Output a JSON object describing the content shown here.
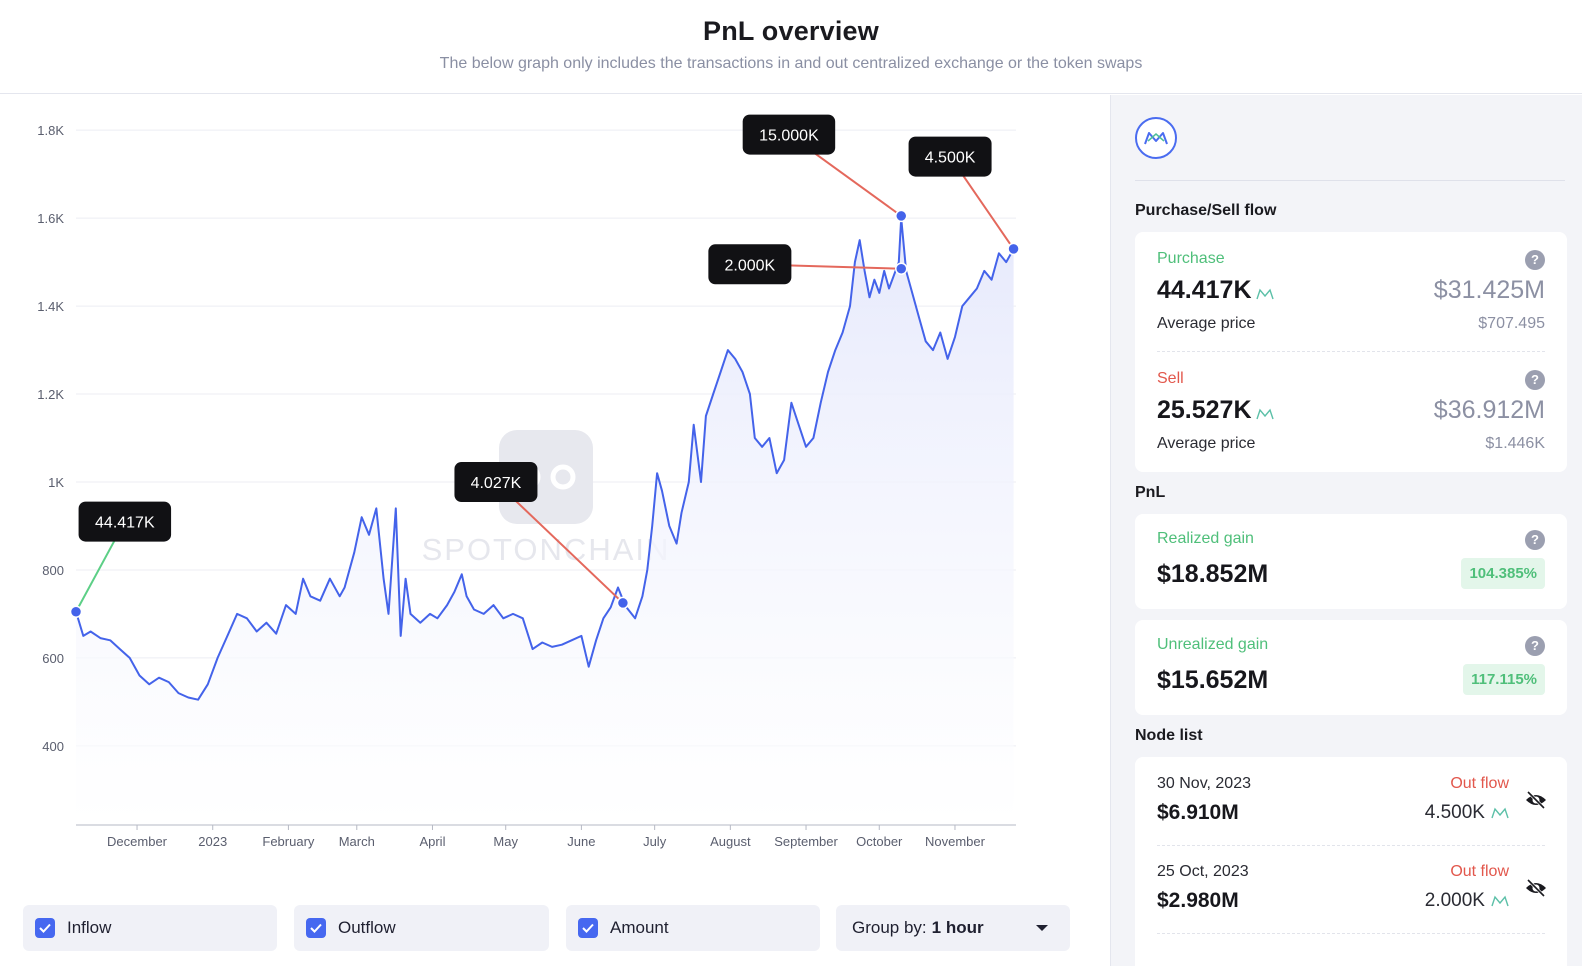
{
  "header": {
    "title": "PnL overview",
    "subtitle": "The below graph only includes the transactions in and out centralized exchange or the token swaps"
  },
  "colors": {
    "line": "#4463ea",
    "inflow_connector": "#5ccf86",
    "outflow_connector": "#e4685c",
    "accent": "#4668f0",
    "green": "#4fbf7a",
    "red": "#e2574c"
  },
  "watermark": "SPOTONCHAIN",
  "chart_data": {
    "type": "area",
    "ylim": [
      220,
      1880
    ],
    "yticks": [
      400,
      600,
      800,
      1000,
      1200,
      1400,
      1600,
      1800
    ],
    "ytick_labels": [
      "400",
      "600",
      "800",
      "1K",
      "1.2K",
      "1.4K",
      "1.6K",
      "1.8K"
    ],
    "xtick_labels": [
      "December",
      "2023",
      "February",
      "March",
      "April",
      "May",
      "June",
      "July",
      "August",
      "September",
      "October",
      "November"
    ],
    "xtick_positions": [
      25,
      56,
      87,
      115,
      146,
      176,
      207,
      237,
      268,
      299,
      329,
      360
    ],
    "x_range": [
      0,
      385
    ],
    "grid": true,
    "series": [
      {
        "points": [
          [
            0,
            705
          ],
          [
            3,
            650
          ],
          [
            6,
            660
          ],
          [
            10,
            645
          ],
          [
            14,
            640
          ],
          [
            18,
            620
          ],
          [
            22,
            600
          ],
          [
            26,
            560
          ],
          [
            30,
            540
          ],
          [
            34,
            555
          ],
          [
            38,
            545
          ],
          [
            42,
            520
          ],
          [
            46,
            510
          ],
          [
            50,
            505
          ],
          [
            54,
            540
          ],
          [
            58,
            600
          ],
          [
            62,
            650
          ],
          [
            66,
            700
          ],
          [
            70,
            690
          ],
          [
            74,
            660
          ],
          [
            78,
            680
          ],
          [
            82,
            655
          ],
          [
            86,
            720
          ],
          [
            90,
            700
          ],
          [
            93,
            780
          ],
          [
            96,
            740
          ],
          [
            100,
            730
          ],
          [
            104,
            780
          ],
          [
            108,
            740
          ],
          [
            110,
            760
          ],
          [
            114,
            840
          ],
          [
            117,
            920
          ],
          [
            120,
            880
          ],
          [
            123,
            940
          ],
          [
            126,
            780
          ],
          [
            128,
            700
          ],
          [
            131,
            940
          ],
          [
            133,
            650
          ],
          [
            135,
            780
          ],
          [
            137,
            700
          ],
          [
            141,
            680
          ],
          [
            145,
            700
          ],
          [
            148,
            690
          ],
          [
            152,
            720
          ],
          [
            155,
            750
          ],
          [
            158,
            790
          ],
          [
            160,
            740
          ],
          [
            163,
            710
          ],
          [
            167,
            700
          ],
          [
            171,
            720
          ],
          [
            175,
            690
          ],
          [
            179,
            700
          ],
          [
            183,
            690
          ],
          [
            187,
            620
          ],
          [
            191,
            635
          ],
          [
            195,
            625
          ],
          [
            199,
            630
          ],
          [
            203,
            640
          ],
          [
            207,
            650
          ],
          [
            210,
            580
          ],
          [
            213,
            640
          ],
          [
            216,
            690
          ],
          [
            219,
            715
          ],
          [
            222,
            760
          ],
          [
            225,
            718
          ],
          [
            229,
            690
          ],
          [
            232,
            740
          ],
          [
            234,
            800
          ],
          [
            236,
            900
          ],
          [
            238,
            1020
          ],
          [
            240,
            980
          ],
          [
            243,
            900
          ],
          [
            246,
            860
          ],
          [
            248,
            930
          ],
          [
            251,
            1000
          ],
          [
            253,
            1130
          ],
          [
            256,
            1000
          ],
          [
            258,
            1150
          ],
          [
            261,
            1200
          ],
          [
            264,
            1250
          ],
          [
            267,
            1300
          ],
          [
            270,
            1280
          ],
          [
            273,
            1250
          ],
          [
            276,
            1200
          ],
          [
            278,
            1100
          ],
          [
            281,
            1080
          ],
          [
            284,
            1100
          ],
          [
            287,
            1020
          ],
          [
            290,
            1050
          ],
          [
            293,
            1180
          ],
          [
            296,
            1130
          ],
          [
            299,
            1080
          ],
          [
            302,
            1100
          ],
          [
            305,
            1180
          ],
          [
            308,
            1250
          ],
          [
            311,
            1300
          ],
          [
            314,
            1340
          ],
          [
            317,
            1400
          ],
          [
            319,
            1500
          ],
          [
            321,
            1550
          ],
          [
            323,
            1480
          ],
          [
            325,
            1420
          ],
          [
            327,
            1460
          ],
          [
            329,
            1430
          ],
          [
            331,
            1480
          ],
          [
            333,
            1440
          ],
          [
            335,
            1470
          ],
          [
            337,
            1500
          ],
          [
            338,
            1600
          ],
          [
            340,
            1480
          ],
          [
            342,
            1440
          ],
          [
            345,
            1380
          ],
          [
            348,
            1320
          ],
          [
            351,
            1300
          ],
          [
            354,
            1340
          ],
          [
            357,
            1280
          ],
          [
            360,
            1330
          ],
          [
            363,
            1400
          ],
          [
            366,
            1420
          ],
          [
            369,
            1440
          ],
          [
            372,
            1480
          ],
          [
            375,
            1460
          ],
          [
            378,
            1520
          ],
          [
            381,
            1500
          ],
          [
            384,
            1530
          ]
        ]
      }
    ],
    "annotations": [
      {
        "label": "44.417K",
        "x": 0,
        "y": 705,
        "kind": "inflow",
        "lx": 20,
        "ly": 910
      },
      {
        "label": "4.027K",
        "x": 224,
        "y": 725,
        "kind": "outflow",
        "lx": 172,
        "ly": 1000
      },
      {
        "label": "2.000K",
        "x": 338,
        "y": 1485,
        "kind": "outflow",
        "lx": 276,
        "ly": 1495
      },
      {
        "label": "15.000K",
        "x": 338,
        "y": 1605,
        "kind": "outflow",
        "lx": 292,
        "ly": 1790
      },
      {
        "label": "4.500K",
        "x": 384,
        "y": 1530,
        "kind": "outflow",
        "lx": 358,
        "ly": 1740
      }
    ]
  },
  "controls": {
    "inflow": "Inflow",
    "outflow": "Outflow",
    "amount": "Amount",
    "group_label": "Group by:",
    "group_value": "1 hour"
  },
  "sidebar": {
    "flow_title": "Purchase/Sell flow",
    "purchase": {
      "label": "Purchase",
      "amount": "44.417K",
      "usd": "$31.425M",
      "avg_label": "Average price",
      "avg_value": "$707.495"
    },
    "sell": {
      "label": "Sell",
      "amount": "25.527K",
      "usd": "$36.912M",
      "avg_label": "Average price",
      "avg_value": "$1.446K"
    },
    "pnl_title": "PnL",
    "realized": {
      "label": "Realized gain",
      "value": "$18.852M",
      "pct": "104.385%"
    },
    "unrealized": {
      "label": "Unrealized gain",
      "value": "$15.652M",
      "pct": "117.115%"
    },
    "node_title": "Node list",
    "nodes": [
      {
        "date": "30 Nov, 2023",
        "flow": "Out flow",
        "usd": "$6.910M",
        "amount": "4.500K"
      },
      {
        "date": "25 Oct, 2023",
        "flow": "Out flow",
        "usd": "$2.980M",
        "amount": "2.000K"
      }
    ]
  }
}
